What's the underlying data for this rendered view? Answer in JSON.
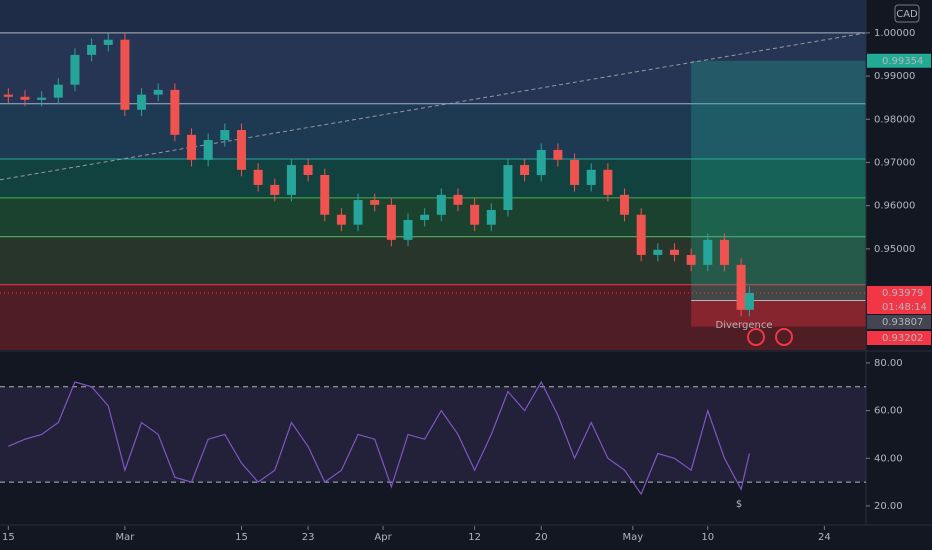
{
  "chart_data": [
    {
      "type": "candlestick",
      "currency": "CAD",
      "xlim": [
        -1,
        103
      ],
      "ylim": [
        0.9266,
        1.0076
      ],
      "yticks": [
        {
          "value": 1.0,
          "label": "1.00000"
        },
        {
          "value": 0.99,
          "label": "0.99000"
        },
        {
          "value": 0.98,
          "label": "0.98000"
        },
        {
          "value": 0.97,
          "label": "0.97000"
        },
        {
          "value": 0.96,
          "label": "0.96000"
        },
        {
          "value": 0.95,
          "label": "0.95000"
        }
      ],
      "xticks": [
        {
          "value": 0,
          "label": "15"
        },
        {
          "value": 14,
          "label": "Mar"
        },
        {
          "value": 28,
          "label": "15"
        },
        {
          "value": 36,
          "label": "23"
        },
        {
          "value": 45,
          "label": "Apr"
        },
        {
          "value": 56,
          "label": "12"
        },
        {
          "value": 64,
          "label": "20"
        },
        {
          "value": 75,
          "label": "May"
        },
        {
          "value": 84,
          "label": "10"
        },
        {
          "value": 98,
          "label": "24"
        }
      ],
      "up_color": "#26a69a",
      "down_color": "#ef5350",
      "x": [
        0,
        2,
        4,
        6,
        8,
        10,
        12,
        14,
        16,
        18,
        20,
        22,
        24,
        26,
        28,
        30,
        32,
        34,
        36,
        38,
        40,
        42,
        44,
        46,
        48,
        50,
        52,
        54,
        56,
        58,
        60,
        62,
        64,
        66,
        68,
        70,
        72,
        74,
        76,
        78,
        80,
        82,
        84,
        86,
        88,
        89
      ],
      "open": [
        0.9857,
        0.9852,
        0.9845,
        0.985,
        0.988,
        0.9949,
        0.9972,
        0.9984,
        0.9822,
        0.9857,
        0.9868,
        0.9764,
        0.9706,
        0.9752,
        0.9775,
        0.9683,
        0.9648,
        0.9625,
        0.9694,
        0.9671,
        0.9579,
        0.9556,
        0.9613,
        0.9602,
        0.9521,
        0.9567,
        0.9579,
        0.9625,
        0.9602,
        0.9556,
        0.959,
        0.9694,
        0.9671,
        0.9729,
        0.9706,
        0.9648,
        0.9683,
        0.9625,
        0.9579,
        0.9486,
        0.9498,
        0.9486,
        0.9463,
        0.9521,
        0.9463,
        0.9359
      ],
      "high": [
        0.9872,
        0.9867,
        0.9865,
        0.9895,
        0.9964,
        0.9987,
        0.9999,
        0.9999,
        0.9872,
        0.9883,
        0.9883,
        0.9779,
        0.9767,
        0.979,
        0.979,
        0.9698,
        0.9663,
        0.9709,
        0.9709,
        0.9686,
        0.9594,
        0.9628,
        0.9628,
        0.9617,
        0.9582,
        0.9594,
        0.964,
        0.964,
        0.9617,
        0.9605,
        0.9709,
        0.9709,
        0.9744,
        0.9744,
        0.9721,
        0.9698,
        0.9698,
        0.964,
        0.9594,
        0.9513,
        0.9513,
        0.9501,
        0.9536,
        0.9536,
        0.9478,
        0.9413
      ],
      "low": [
        0.9837,
        0.983,
        0.983,
        0.9835,
        0.9865,
        0.9934,
        0.9957,
        0.9807,
        0.9807,
        0.9842,
        0.9749,
        0.9691,
        0.9691,
        0.9737,
        0.9668,
        0.9633,
        0.961,
        0.961,
        0.9656,
        0.9564,
        0.9541,
        0.9541,
        0.9587,
        0.9506,
        0.9506,
        0.9552,
        0.9564,
        0.9587,
        0.9541,
        0.9541,
        0.9575,
        0.9656,
        0.9656,
        0.9691,
        0.9633,
        0.9633,
        0.961,
        0.9564,
        0.9471,
        0.9471,
        0.9471,
        0.9448,
        0.9448,
        0.9448,
        0.9344,
        0.9344
      ],
      "close": [
        0.9852,
        0.9845,
        0.985,
        0.988,
        0.9949,
        0.9972,
        0.9984,
        0.9822,
        0.9857,
        0.9868,
        0.9764,
        0.9706,
        0.9752,
        0.9775,
        0.9683,
        0.9648,
        0.9625,
        0.9694,
        0.9671,
        0.9579,
        0.9556,
        0.9613,
        0.9602,
        0.9521,
        0.9567,
        0.9579,
        0.9625,
        0.9602,
        0.9556,
        0.959,
        0.9694,
        0.9671,
        0.9729,
        0.9706,
        0.9648,
        0.9683,
        0.9625,
        0.9579,
        0.9486,
        0.9498,
        0.9486,
        0.9463,
        0.9521,
        0.9463,
        0.9359,
        0.93979
      ],
      "fib_levels": [
        {
          "value": 1.0,
          "color": "#b2b5be",
          "fill": "#2a3b5c"
        },
        {
          "value": 0.9836,
          "color": "#9fb4d4",
          "fill": "#21405a"
        },
        {
          "value": 0.9708,
          "color": "#26a69a",
          "fill": "#134a45"
        },
        {
          "value": 0.9618,
          "color": "#4caf50",
          "fill": "#1d4a30"
        },
        {
          "value": 0.9528,
          "color": "#66bb6a",
          "fill": "#2b3b2c"
        },
        {
          "value": 0.9417,
          "color": "#f23645",
          "fill": "#5a1e24"
        }
      ],
      "trendline": {
        "x": [
          -1,
          103
        ],
        "values": [
          0.966,
          1.0
        ]
      },
      "position": {
        "start": 82,
        "end": 103,
        "target": 0.99354,
        "entry": 0.93807,
        "stop": 0.93202
      },
      "last_price": 0.93979,
      "countdown": "01:48:14",
      "annotations": [
        "Divergence",
        "$"
      ]
    },
    {
      "type": "line",
      "color": "#7e57c2",
      "ylim": [
        12,
        84.6
      ],
      "yticks": [
        {
          "value": 80,
          "label": "80.00"
        },
        {
          "value": 60,
          "label": "60.00"
        },
        {
          "value": 40,
          "label": "40.00"
        },
        {
          "value": 20,
          "label": "20.00"
        }
      ],
      "bands": [
        70,
        30
      ],
      "x": [
        0,
        2,
        4,
        6,
        8,
        10,
        12,
        14,
        16,
        18,
        20,
        22,
        24,
        26,
        28,
        30,
        32,
        34,
        36,
        38,
        40,
        42,
        44,
        46,
        48,
        50,
        52,
        54,
        56,
        58,
        60,
        62,
        64,
        66,
        68,
        70,
        72,
        74,
        76,
        78,
        80,
        82,
        84,
        86,
        88,
        89
      ],
      "values": [
        45,
        48,
        50,
        55,
        72,
        70,
        62,
        35,
        55,
        50,
        32,
        30,
        48,
        50,
        38,
        30,
        35,
        55,
        45,
        30,
        35,
        50,
        48,
        28,
        50,
        48,
        60,
        50,
        35,
        50,
        68,
        60,
        72,
        58,
        40,
        55,
        40,
        35,
        25,
        42,
        40,
        35,
        60,
        40,
        27,
        42
      ]
    }
  ]
}
